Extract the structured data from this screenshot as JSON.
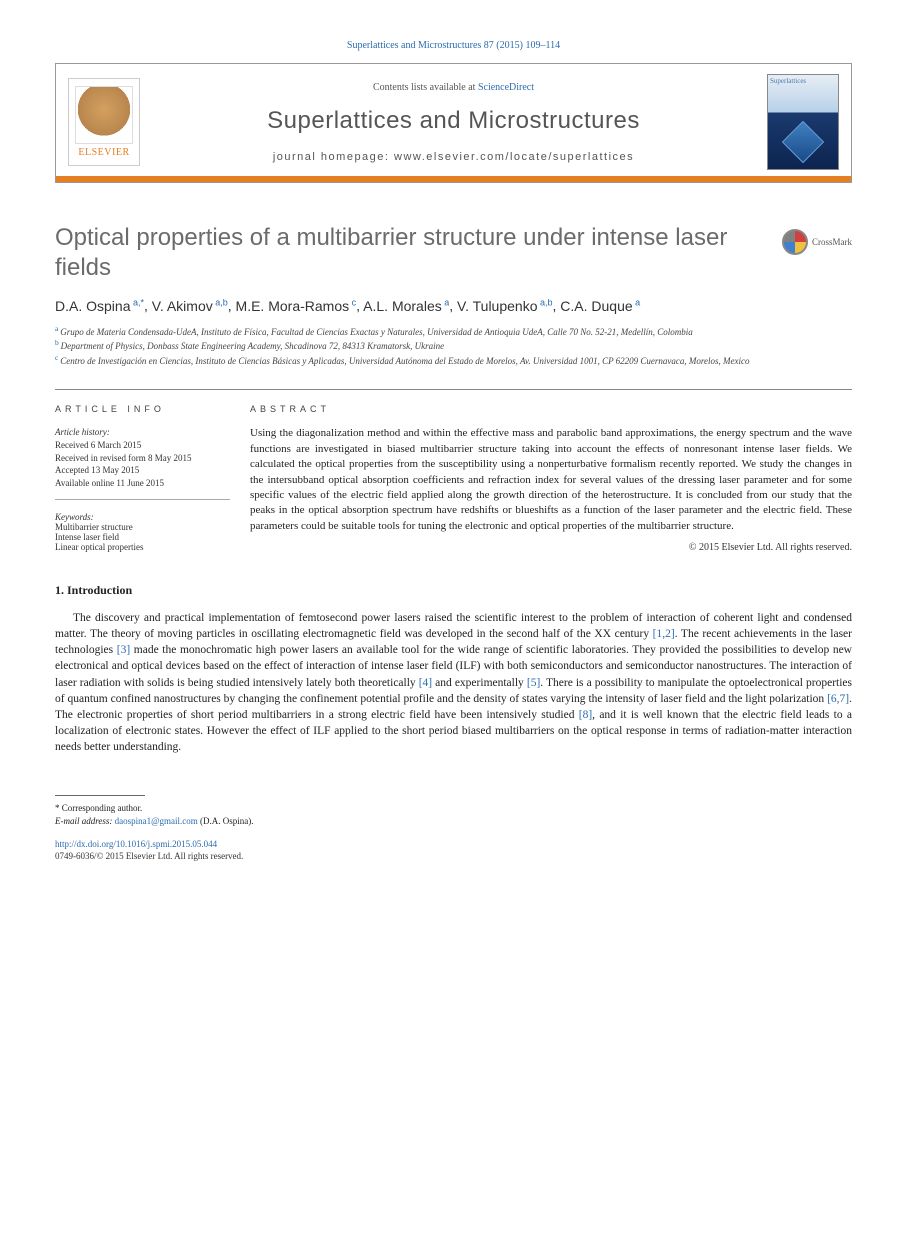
{
  "citation": "Superlattices and Microstructures 87 (2015) 109–114",
  "header": {
    "publisher_logo": "ELSEVIER",
    "contents_prefix": "Contents lists available at ",
    "contents_link": "ScienceDirect",
    "journal_name": "Superlattices and Microstructures",
    "homepage_label": "journal homepage: www.elsevier.com/locate/superlattices",
    "cover_title": "Superlattices"
  },
  "article": {
    "title": "Optical properties of a multibarrier structure under intense laser fields",
    "crossmark": "CrossMark"
  },
  "authors_line": "D.A. Ospina",
  "authors": [
    {
      "name": "D.A. Ospina",
      "sup": "a,*"
    },
    {
      "name": "V. Akimov",
      "sup": "a,b"
    },
    {
      "name": "M.E. Mora-Ramos",
      "sup": "c"
    },
    {
      "name": "A.L. Morales",
      "sup": "a"
    },
    {
      "name": "V. Tulupenko",
      "sup": "a,b"
    },
    {
      "name": "C.A. Duque",
      "sup": "a"
    }
  ],
  "affiliations": [
    {
      "sup": "a",
      "text": "Grupo de Materia Condensada-UdeA, Instituto de Física, Facultad de Ciencias Exactas y Naturales, Universidad de Antioquia UdeA, Calle 70 No. 52-21, Medellín, Colombia"
    },
    {
      "sup": "b",
      "text": "Department of Physics, Donbass State Engineering Academy, Shcadinova 72, 84313 Kramatorsk, Ukraine"
    },
    {
      "sup": "c",
      "text": "Centro de Investigación en Ciencias, Instituto de Ciencias Básicas y Aplicadas, Universidad Autónoma del Estado de Morelos, Av. Universidad 1001, CP 62209 Cuernavaca, Morelos, Mexico"
    }
  ],
  "info": {
    "heading": "ARTICLE INFO",
    "history_label": "Article history:",
    "history": [
      "Received 6 March 2015",
      "Received in revised form 8 May 2015",
      "Accepted 13 May 2015",
      "Available online 11 June 2015"
    ],
    "keywords_label": "Keywords:",
    "keywords": [
      "Multibarrier structure",
      "Intense laser field",
      "Linear optical properties"
    ]
  },
  "abstract": {
    "heading": "ABSTRACT",
    "text": "Using the diagonalization method and within the effective mass and parabolic band approximations, the energy spectrum and the wave functions are investigated in biased multibarrier structure taking into account the effects of nonresonant intense laser fields. We calculated the optical properties from the susceptibility using a nonperturbative formalism recently reported. We study the changes in the intersubband optical absorption coefficients and refraction index for several values of the dressing laser parameter and for some specific values of the electric field applied along the growth direction of the heterostructure. It is concluded from our study that the peaks in the optical absorption spectrum have redshifts or blueshifts as a function of the laser parameter and the electric field. These parameters could be suitable tools for tuning the electronic and optical properties of the multibarrier structure.",
    "copyright": "© 2015 Elsevier Ltd. All rights reserved."
  },
  "introduction": {
    "heading": "1. Introduction",
    "para": "The discovery and practical implementation of femtosecond power lasers raised the scientific interest to the problem of interaction of coherent light and condensed matter. The theory of moving particles in oscillating electromagnetic field was developed in the second half of the XX century [1,2]. The recent achievements in the laser technologies [3] made the monochromatic high power lasers an available tool for the wide range of scientific laboratories. They provided the possibilities to develop new electronical and optical devices based on the effect of interaction of intense laser field (ILF) with both semiconductors and semiconductor nanostructures. The interaction of laser radiation with solids is being studied intensively lately both theoretically [4] and experimentally [5]. There is a possibility to manipulate the optoelectronical properties of quantum confined nanostructures by changing the confinement potential profile and the density of states varying the intensity of laser field and the light polarization [6,7]. The electronic properties of short period multibarriers in a strong electric field have been intensively studied [8], and it is well known that the electric field leads to a localization of electronic states. However the effect of ILF applied to the short period biased multibarriers on the optical response in terms of radiation-matter interaction needs better understanding.",
    "refs": [
      "[1,2]",
      "[3]",
      "[4]",
      "[5]",
      "[6,7]",
      "[8]"
    ]
  },
  "footnote": {
    "corresponding": "* Corresponding author.",
    "email_label": "E-mail address: ",
    "email": "daospina1@gmail.com",
    "email_suffix": " (D.A. Ospina)."
  },
  "footer": {
    "doi": "http://dx.doi.org/10.1016/j.spmi.2015.05.044",
    "issn_line": "0749-6036/© 2015 Elsevier Ltd. All rights reserved."
  },
  "colors": {
    "link": "#2b6cb0",
    "orange": "#e67e22",
    "title_gray": "#6b6b6b"
  }
}
